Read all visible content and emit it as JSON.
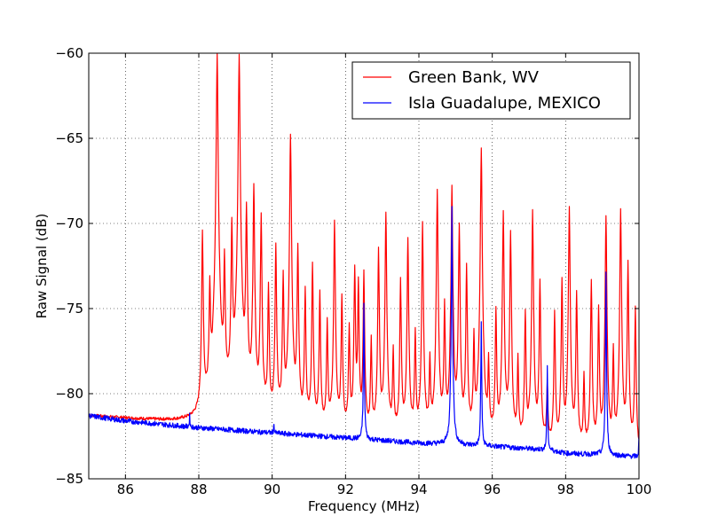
{
  "chart_data": {
    "type": "line",
    "title": "",
    "xlabel": "Frequency (MHz)",
    "ylabel": "Raw Signal (dB)",
    "xlim": [
      85,
      100
    ],
    "ylim": [
      -85,
      -60
    ],
    "xticks": [
      86,
      88,
      90,
      92,
      94,
      96,
      98,
      100
    ],
    "yticks": [
      -85,
      -80,
      -75,
      -70,
      -65,
      -60
    ],
    "xtick_labels": [
      "86",
      "88",
      "90",
      "92",
      "94",
      "96",
      "98",
      "100"
    ],
    "ytick_labels": [
      "−85",
      "−80",
      "−75",
      "−70",
      "−65",
      "−60"
    ],
    "grid": true,
    "legend_position": "top-right",
    "series": [
      {
        "name": "Green Bank, WV",
        "color": "#ff0000",
        "baseline": [
          [
            85.0,
            -81.3
          ],
          [
            88.0,
            -81.8
          ],
          [
            88.2,
            -81.6
          ],
          [
            90.0,
            -82.0
          ],
          [
            92.0,
            -82.4
          ],
          [
            94.0,
            -82.8
          ],
          [
            96.0,
            -83.0
          ],
          [
            97.5,
            -83.2
          ],
          [
            98.0,
            -83.5
          ],
          [
            100.0,
            -83.7
          ]
        ],
        "peaks": [
          {
            "x": 88.1,
            "y": -70.5
          },
          {
            "x": 88.3,
            "y": -73.7
          },
          {
            "x": 88.5,
            "y": -60.0
          },
          {
            "x": 88.7,
            "y": -72.0
          },
          {
            "x": 88.9,
            "y": -70.0
          },
          {
            "x": 89.1,
            "y": -60.0
          },
          {
            "x": 89.3,
            "y": -69.0
          },
          {
            "x": 89.5,
            "y": -67.7
          },
          {
            "x": 89.7,
            "y": -69.5
          },
          {
            "x": 89.9,
            "y": -73.7
          },
          {
            "x": 90.1,
            "y": -71.3
          },
          {
            "x": 90.3,
            "y": -73.0
          },
          {
            "x": 90.5,
            "y": -64.7
          },
          {
            "x": 90.7,
            "y": -71.3
          },
          {
            "x": 90.9,
            "y": -73.9
          },
          {
            "x": 91.1,
            "y": -72.3
          },
          {
            "x": 91.3,
            "y": -74.0
          },
          {
            "x": 91.5,
            "y": -75.8
          },
          {
            "x": 91.7,
            "y": -69.8
          },
          {
            "x": 91.9,
            "y": -74.2
          },
          {
            "x": 92.1,
            "y": -76.0
          },
          {
            "x": 92.25,
            "y": -72.5
          },
          {
            "x": 92.35,
            "y": -73.3
          },
          {
            "x": 92.5,
            "y": -72.9
          },
          {
            "x": 92.7,
            "y": -76.9
          },
          {
            "x": 92.9,
            "y": -71.5
          },
          {
            "x": 93.1,
            "y": -69.3
          },
          {
            "x": 93.3,
            "y": -77.5
          },
          {
            "x": 93.5,
            "y": -73.3
          },
          {
            "x": 93.7,
            "y": -70.8
          },
          {
            "x": 93.9,
            "y": -76.4
          },
          {
            "x": 94.1,
            "y": -70.0
          },
          {
            "x": 94.3,
            "y": -78.0
          },
          {
            "x": 94.5,
            "y": -68.1
          },
          {
            "x": 94.7,
            "y": -74.8
          },
          {
            "x": 94.9,
            "y": -67.8
          },
          {
            "x": 95.1,
            "y": -70.0
          },
          {
            "x": 95.3,
            "y": -72.5
          },
          {
            "x": 95.5,
            "y": -76.7
          },
          {
            "x": 95.7,
            "y": -65.6
          },
          {
            "x": 95.9,
            "y": -78.3
          },
          {
            "x": 96.1,
            "y": -75.0
          },
          {
            "x": 96.3,
            "y": -69.3
          },
          {
            "x": 96.5,
            "y": -70.5
          },
          {
            "x": 96.7,
            "y": -78.0
          },
          {
            "x": 96.9,
            "y": -75.2
          },
          {
            "x": 97.1,
            "y": -69.2
          },
          {
            "x": 97.3,
            "y": -73.3
          },
          {
            "x": 97.5,
            "y": -79.5
          },
          {
            "x": 97.7,
            "y": -75.2
          },
          {
            "x": 97.9,
            "y": -73.3
          },
          {
            "x": 98.1,
            "y": -69.1
          },
          {
            "x": 98.3,
            "y": -74.0
          },
          {
            "x": 98.5,
            "y": -79.0
          },
          {
            "x": 98.7,
            "y": -73.3
          },
          {
            "x": 98.9,
            "y": -75.0
          },
          {
            "x": 99.1,
            "y": -69.5
          },
          {
            "x": 99.3,
            "y": -77.5
          },
          {
            "x": 99.5,
            "y": -69.2
          },
          {
            "x": 99.7,
            "y": -72.3
          },
          {
            "x": 99.9,
            "y": -75.0
          }
        ]
      },
      {
        "name": "Isla Guadalupe, MEXICO",
        "color": "#0000ff",
        "baseline": [
          [
            85.0,
            -81.3
          ],
          [
            86.0,
            -81.6
          ],
          [
            88.0,
            -82.0
          ],
          [
            90.0,
            -82.3
          ],
          [
            92.0,
            -82.6
          ],
          [
            94.0,
            -82.9
          ],
          [
            96.0,
            -83.1
          ],
          [
            97.5,
            -83.3
          ],
          [
            98.0,
            -83.5
          ],
          [
            100.0,
            -83.7
          ]
        ],
        "peaks": [
          {
            "x": 87.75,
            "y": -81.3
          },
          {
            "x": 90.05,
            "y": -81.8
          },
          {
            "x": 92.5,
            "y": -74.7
          },
          {
            "x": 94.9,
            "y": -68.9
          },
          {
            "x": 95.7,
            "y": -75.8
          },
          {
            "x": 97.5,
            "y": -78.5
          },
          {
            "x": 99.1,
            "y": -72.9
          },
          {
            "x": 100.0,
            "y": -82.5
          }
        ]
      }
    ]
  }
}
